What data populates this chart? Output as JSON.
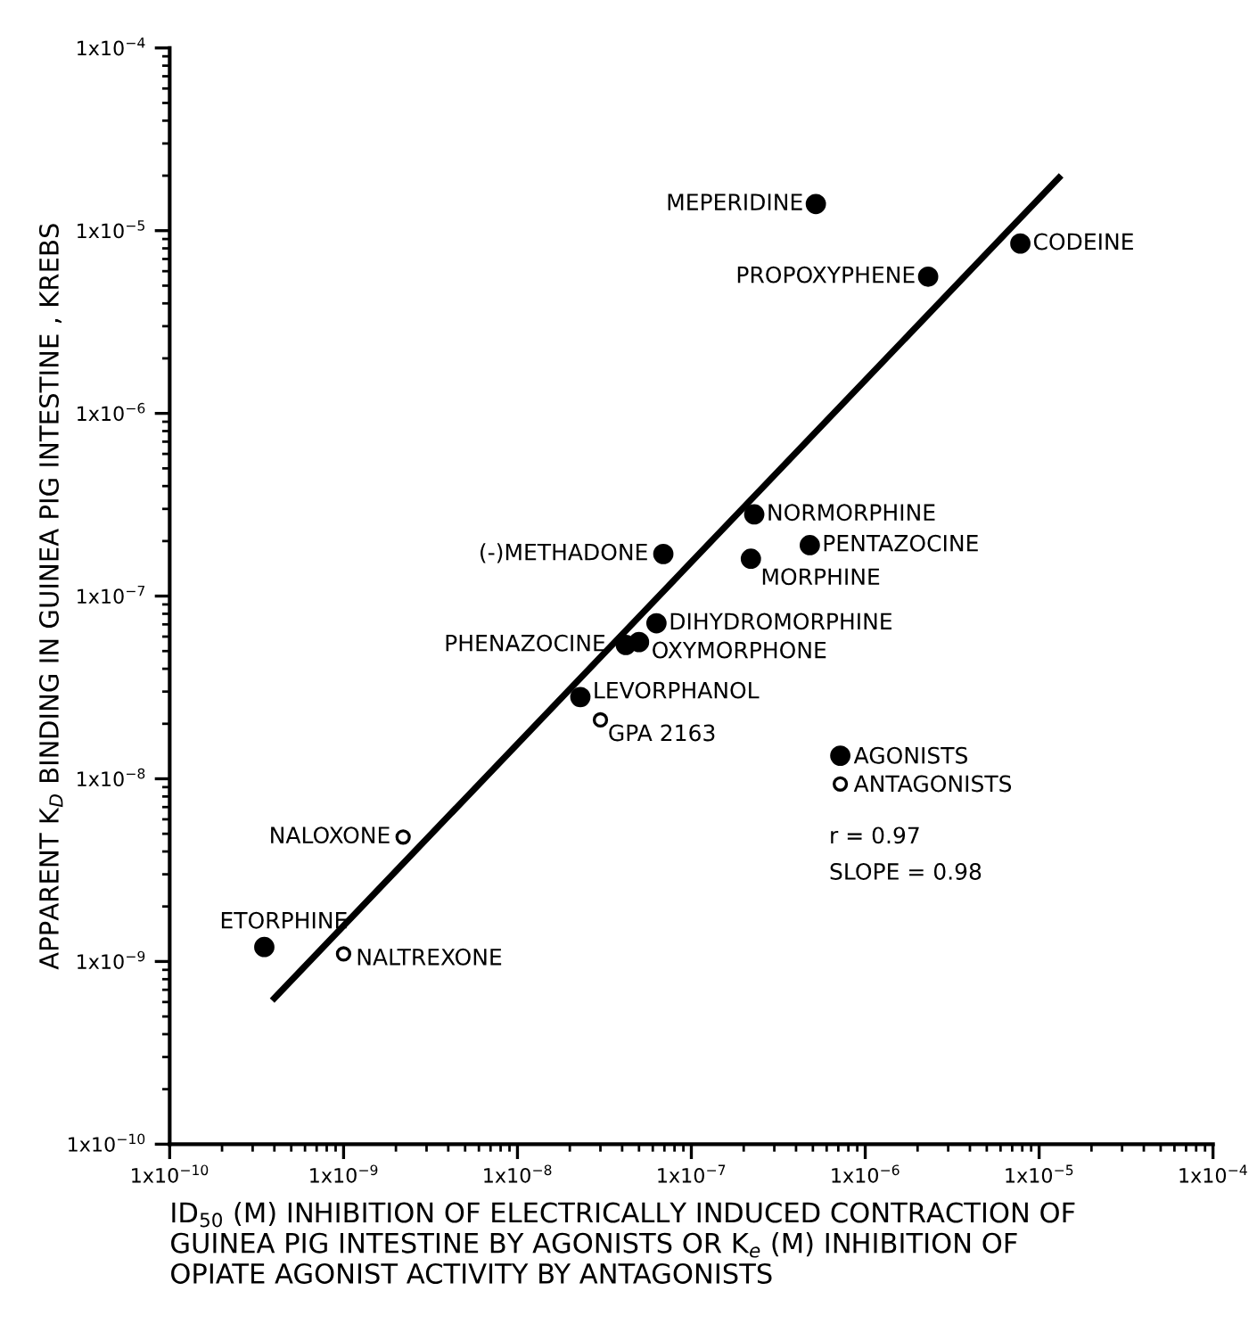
{
  "chart_data": {
    "type": "scatter",
    "xlabel": "ID$_{50}$ (M) INHIBITION OF ELECTRICALLY INDUCED CONTRACTION OF\nGUINEA PIG INTESTINE BY AGONISTS OR K$_{e}$ (M) INHIBITION OF\nOPIATE AGONIST ACTIVITY BY ANTAGONISTS",
    "ylabel": "APPARENT K$_{D}$ BINDING IN GUINEA PIG INTESTINE , KREBS",
    "log": "xy",
    "xlim": [
      1e-10,
      0.0001
    ],
    "ylim": [
      1e-10,
      0.0001
    ],
    "xticks": [
      {
        "value": 1e-10,
        "label": "1x10$^{−10}$"
      },
      {
        "value": 1e-09,
        "label": "1x10$^{−9}$"
      },
      {
        "value": 1e-08,
        "label": "1x10$^{−8}$"
      },
      {
        "value": 1e-07,
        "label": "1x10$^{−7}$"
      },
      {
        "value": 1e-06,
        "label": "1x10$^{−6}$"
      },
      {
        "value": 1e-05,
        "label": "1x10$^{−5}$"
      },
      {
        "value": 0.0001,
        "label": "1x10$^{−4}$"
      }
    ],
    "yticks": [
      {
        "value": 1e-10,
        "label": "1x10$^{−10}$"
      },
      {
        "value": 1e-09,
        "label": "1x10$^{−9}$"
      },
      {
        "value": 1e-08,
        "label": "1x10$^{−8}$"
      },
      {
        "value": 1e-07,
        "label": "1x10$^{−7}$"
      },
      {
        "value": 1e-06,
        "label": "1x10$^{−6}$"
      },
      {
        "value": 1e-05,
        "label": "1x10$^{−5}$"
      },
      {
        "value": 0.0001,
        "label": "1x10$^{−4}$"
      }
    ],
    "grid": false,
    "legend": "right",
    "marker": "circle",
    "series": [
      {
        "name": "AGONISTS",
        "color": "#000000",
        "x": [
          5.2e-07,
          2.3e-06,
          7.8e-06,
          2.3e-07,
          4.8e-07,
          2.2e-07,
          6.9e-08,
          6.3e-08,
          4.2e-08,
          5e-08,
          2.3e-08,
          3.5e-10
        ],
        "values": [
          1.4e-05,
          5.6e-06,
          8.5e-06,
          2.8e-07,
          1.9e-07,
          1.6e-07,
          1.7e-07,
          7.1e-08,
          5.4e-08,
          5.6e-08,
          2.8e-08,
          1.2e-09
        ]
      },
      {
        "name": "ANTAGONISTS",
        "color": "#ffffff",
        "x": [
          3e-08,
          2.2e-09,
          1e-09
        ],
        "values": [
          2.1e-08,
          4.8e-09,
          1.1e-09
        ]
      },
      {
        "type": "line",
        "color": "#000000",
        "marker": "none",
        "line_style": "solid",
        "x": [
          4e-10,
          1.3e-05
        ],
        "values": [
          6.3e-10,
          1.95e-05
        ]
      }
    ],
    "annotations": [
      {
        "text": "MEPERIDINE",
        "x": 5.2e-07,
        "y": 1.4e-05
      },
      {
        "text": "PROPOXYPHENE",
        "x": 2.3e-06,
        "y": 5.6e-06
      },
      {
        "text": "CODEINE",
        "x": 7.8e-06,
        "y": 8.5e-06
      },
      {
        "text": "NORMORPHINE",
        "x": 2.3e-07,
        "y": 2.8e-07
      },
      {
        "text": "PENTAZOCINE",
        "x": 4.8e-07,
        "y": 1.9e-07
      },
      {
        "text": "MORPHINE",
        "x": 2.2e-07,
        "y": 1.6e-07
      },
      {
        "text": "(-)METHADONE",
        "x": 6.9e-08,
        "y": 1.7e-07
      },
      {
        "text": "DIHYDROMORPHINE",
        "x": 6.3e-08,
        "y": 7.1e-08
      },
      {
        "text": "PHENAZOCINE",
        "x": 4.2e-08,
        "y": 5.4e-08
      },
      {
        "text": "OXYMORPHONE",
        "x": 5e-08,
        "y": 5.6e-08
      },
      {
        "text": "LEVORPHANOL",
        "x": 2.3e-08,
        "y": 2.8e-08
      },
      {
        "text": "GPA 2163",
        "x": 3e-08,
        "y": 2.1e-08
      },
      {
        "text": "NALOXONE",
        "x": 2.2e-09,
        "y": 4.8e-09
      },
      {
        "text": "ETORPHINE",
        "x": 3.5e-10,
        "y": 1.2e-09
      },
      {
        "text": "NALTREXONE",
        "x": 1e-09,
        "y": 1.1e-09
      },
      "r = 0.97",
      "SLOPE = 0.98"
    ]
  }
}
